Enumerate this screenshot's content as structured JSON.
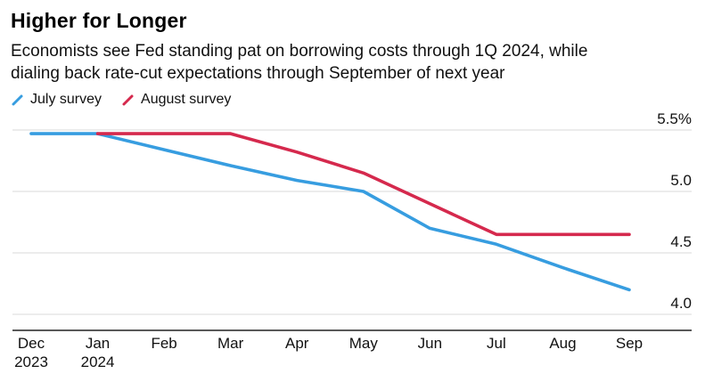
{
  "header": {
    "title": "Higher for Longer",
    "subtitle_line1": "Economists see Fed standing pat on borrowing costs through 1Q 2024, while",
    "subtitle_line2": "dialing back rate-cut expectations through September of next year"
  },
  "chart_data": {
    "type": "line",
    "title": "Higher for Longer",
    "subtitle": "Economists see Fed standing pat on borrowing costs through 1Q 2024, while dialing back rate-cut expectations through September of next year",
    "x_labels": [
      [
        "Dec",
        "2023"
      ],
      [
        "Jan",
        "2024"
      ],
      [
        "Feb"
      ],
      [
        "Mar"
      ],
      [
        "Apr"
      ],
      [
        "May"
      ],
      [
        "Jun"
      ],
      [
        "Jul"
      ],
      [
        "Aug"
      ],
      [
        "Sep"
      ]
    ],
    "series": [
      {
        "name": "July survey",
        "color": "#379de0",
        "values": [
          5.47,
          5.47,
          5.34,
          5.21,
          5.09,
          5.0,
          4.7,
          4.57,
          4.38,
          4.2
        ]
      },
      {
        "name": "August survey",
        "color": "#d5294d",
        "values": [
          null,
          5.47,
          5.47,
          5.47,
          5.32,
          5.15,
          4.9,
          4.65,
          4.65,
          4.65
        ]
      }
    ],
    "yticks": [
      {
        "value": 5.5,
        "label": "5.5%"
      },
      {
        "value": 5.0,
        "label": "5.0"
      },
      {
        "value": 4.5,
        "label": "4.5"
      },
      {
        "value": 4.0,
        "label": "4.0"
      }
    ],
    "ylim": [
      3.85,
      5.6
    ],
    "grid": "horizontal",
    "legend_position": "top-left",
    "unit": "%"
  },
  "colors": {
    "grid": "#d8d8d8",
    "axis": "#222222",
    "text": "#111111"
  }
}
